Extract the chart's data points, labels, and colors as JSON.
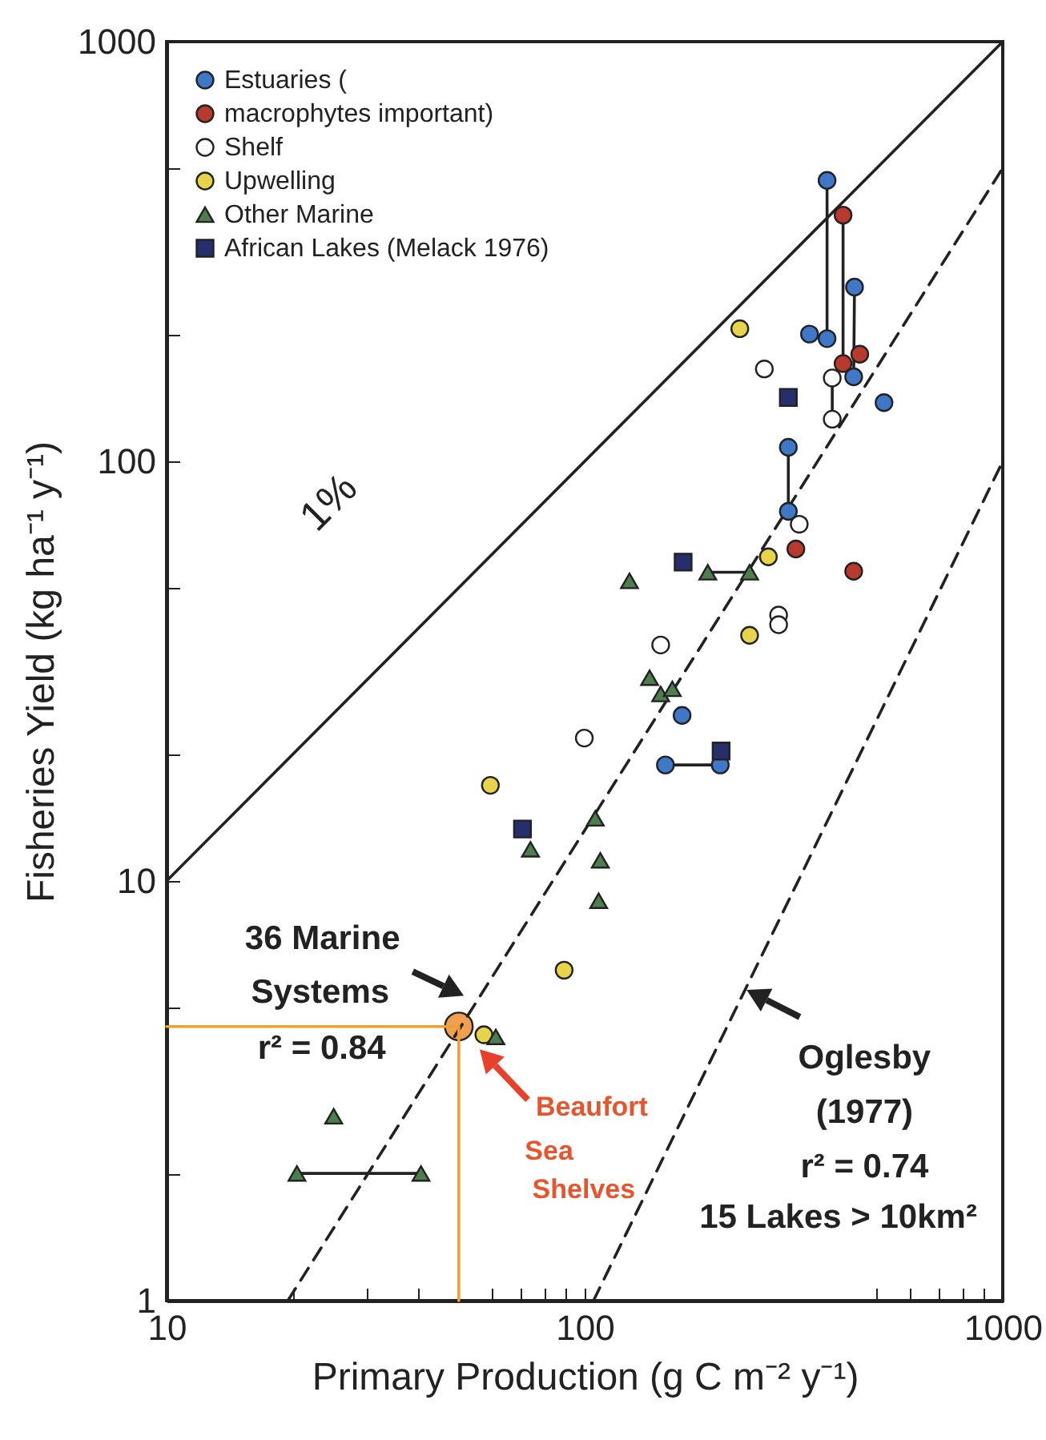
{
  "chart_data": {
    "type": "scatter",
    "xlabel": "Primary Production (g C m⁻² y⁻¹)",
    "ylabel": "Fisheries Yield (kg ha⁻¹ y⁻¹)",
    "log": "xy",
    "xlim": [
      10,
      1000
    ],
    "ylim": [
      1,
      1000
    ],
    "xticks": [
      10,
      {
        "value": 20,
        "label": null
      },
      {
        "value": 30,
        "label": null
      },
      {
        "value": 40,
        "label": null
      },
      {
        "value": 50,
        "label": null
      },
      {
        "value": 60,
        "label": null
      },
      {
        "value": 70,
        "label": null
      },
      {
        "value": 80,
        "label": null
      },
      {
        "value": 90,
        "label": null
      },
      100,
      {
        "value": 500,
        "label": null
      },
      {
        "value": 600,
        "label": null
      },
      {
        "value": 700,
        "label": null
      },
      {
        "value": 800,
        "label": null
      },
      {
        "value": 900,
        "label": null
      },
      1000
    ],
    "yticks": [
      1,
      {
        "value": 2,
        "label": null
      },
      {
        "value": 5,
        "label": null
      },
      10,
      {
        "value": 20,
        "label": null
      },
      {
        "value": 50,
        "label": null
      },
      100,
      {
        "value": 200,
        "label": null
      },
      {
        "value": 500,
        "label": null
      },
      1000
    ],
    "grid": false,
    "legend": "top left",
    "series": [
      {
        "name": "Estuaries (",
        "color": "#3f78c8",
        "marker": "circle",
        "x": [
          380,
          345,
          380,
          442,
          440,
          520,
          307,
          307,
          171,
          156,
          211
        ],
        "values": [
          467,
          201,
          196,
          260,
          159,
          138,
          108,
          76,
          24.8,
          18.9,
          18.9
        ]
      },
      {
        "name": "macrophytes important)",
        "color": "#b83a2e",
        "marker": "circle",
        "x": [
          415,
          415,
          455,
          320,
          440
        ],
        "values": [
          386,
          171,
          180,
          61.8,
          54.7
        ]
      },
      {
        "name": "Shelf",
        "color": "#ffffff",
        "marker": "circle",
        "x": [
          269,
          391,
          391,
          326,
          291,
          291,
          152,
          99.8
        ],
        "values": [
          166,
          158,
          126,
          70.8,
          43,
          40.8,
          36.5,
          21.9
        ]
      },
      {
        "name": "Upwelling",
        "color": "#e8d44a",
        "marker": "circle",
        "x": [
          235,
          275,
          248,
          59.5,
          89.3,
          57.4
        ],
        "values": [
          207,
          59.2,
          38.5,
          16.9,
          6.13,
          4.3
        ]
      },
      {
        "name": "Other Marine",
        "color": "#4e7d4e",
        "marker": "triangle",
        "x": [
          128,
          197,
          248,
          143,
          152,
          162,
          106,
          74.2,
          109,
          108,
          61.3,
          25.1,
          20.5,
          40.6
        ],
        "values": [
          51.9,
          54.4,
          54.4,
          30.5,
          27.9,
          28.7,
          14.1,
          11.9,
          11.2,
          8.97,
          4.25,
          2.75,
          2.01,
          2.01
        ]
      },
      {
        "name": "African Lakes (Melack 1976)",
        "color": "#262f6b",
        "marker": "square",
        "x": [
          307,
          172,
          212,
          71
        ],
        "values": [
          142,
          57.5,
          20.4,
          13.3
        ]
      },
      {
        "color": "#f0a050",
        "marker": "circle",
        "x": [
          50
        ],
        "values": [
          4.5
        ]
      },
      {
        "type": "line",
        "color": "#222222",
        "line_style": "solid",
        "x": [
          10,
          1000
        ],
        "values": [
          10,
          1000
        ]
      },
      {
        "type": "line",
        "color": "#222222",
        "line_style": "dashed",
        "x": [
          19.5,
          1000
        ],
        "values": [
          1,
          500
        ]
      },
      {
        "type": "line",
        "color": "#222222",
        "line_style": "dashed",
        "x": [
          105,
          1000
        ],
        "values": [
          1,
          100
        ]
      },
      {
        "type": "line",
        "color": "#f0a030",
        "line_style": "solid",
        "x": [
          10,
          50,
          50
        ],
        "values": [
          4.5,
          4.5,
          1
        ]
      },
      {
        "type": "line",
        "color": "#222222",
        "line_style": "solid",
        "x": [
          380,
          380
        ],
        "values": [
          467,
          196
        ]
      },
      {
        "type": "line",
        "color": "#222222",
        "line_style": "solid",
        "x": [
          415,
          415
        ],
        "values": [
          386,
          171
        ]
      },
      {
        "type": "line",
        "color": "#222222",
        "line_style": "solid",
        "x": [
          442,
          440
        ],
        "values": [
          260,
          159
        ]
      },
      {
        "type": "line",
        "color": "#222222",
        "line_style": "solid",
        "x": [
          391,
          391
        ],
        "values": [
          158,
          126
        ]
      },
      {
        "type": "line",
        "color": "#222222",
        "line_style": "solid",
        "x": [
          307,
          307
        ],
        "values": [
          108,
          76
        ]
      },
      {
        "type": "line",
        "color": "#222222",
        "line_style": "solid",
        "x": [
          197,
          248
        ],
        "values": [
          54.4,
          54.4
        ]
      },
      {
        "type": "line",
        "color": "#222222",
        "line_style": "solid",
        "x": [
          156,
          211
        ],
        "values": [
          18.9,
          18.9
        ]
      },
      {
        "type": "line",
        "color": "#222222",
        "line_style": "solid",
        "x": [
          20.5,
          40.6
        ],
        "values": [
          2.01,
          2.01
        ]
      }
    ],
    "annotations": [
      "1%",
      "36 Marine",
      "Systems",
      "r² = 0.84",
      "Beaufort",
      "Sea",
      "Shelves",
      "Oglesby",
      "(1977)",
      "r² = 0.74",
      "15 Lakes > 10km²"
    ]
  }
}
